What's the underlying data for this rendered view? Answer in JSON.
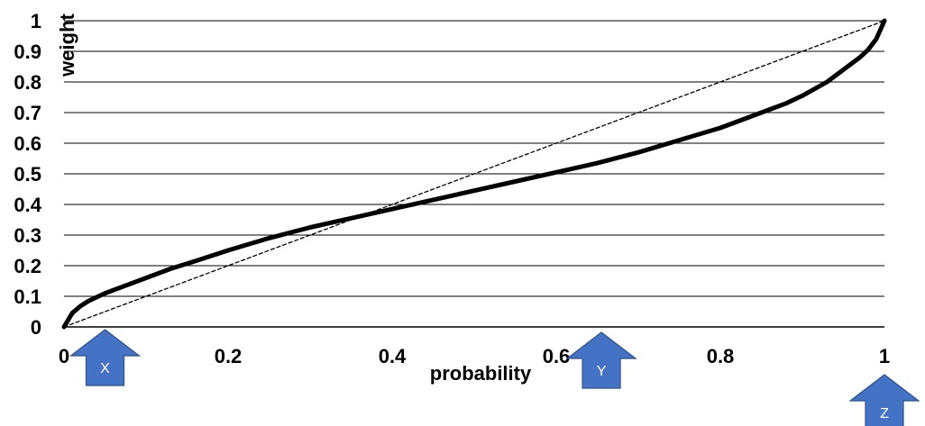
{
  "chart_data": {
    "type": "line",
    "xlabel": "probability",
    "ylabel": "weight",
    "xlim": [
      0,
      1
    ],
    "ylim": [
      0,
      1
    ],
    "x_ticks": [
      0,
      0.2,
      0.4,
      0.6,
      0.8,
      1
    ],
    "x_tick_labels": [
      "0",
      "0.2",
      "0.4",
      "0.6",
      "0.8",
      "1"
    ],
    "y_ticks": [
      0,
      0.1,
      0.2,
      0.3,
      0.4,
      0.5,
      0.6,
      0.7,
      0.8,
      0.9,
      1
    ],
    "y_tick_labels": [
      "0",
      "0.1",
      "0.2",
      "0.3",
      "0.4",
      "0.5",
      "0.6",
      "0.7",
      "0.8",
      "0.9",
      "1"
    ],
    "grid": "horizontal",
    "series": [
      {
        "style": "solid-thick",
        "color": "#000000",
        "x": [
          0,
          0.01,
          0.02,
          0.03,
          0.05,
          0.07,
          0.1,
          0.13,
          0.16,
          0.2,
          0.25,
          0.3,
          0.35,
          0.4,
          0.45,
          0.5,
          0.55,
          0.6,
          0.65,
          0.7,
          0.75,
          0.8,
          0.85,
          0.88,
          0.9,
          0.93,
          0.95,
          0.97,
          0.98,
          0.99,
          1
        ],
        "y": [
          0,
          0.045,
          0.068,
          0.085,
          0.11,
          0.13,
          0.16,
          0.19,
          0.215,
          0.25,
          0.29,
          0.325,
          0.355,
          0.385,
          0.415,
          0.445,
          0.475,
          0.505,
          0.535,
          0.57,
          0.61,
          0.65,
          0.7,
          0.73,
          0.755,
          0.8,
          0.84,
          0.88,
          0.905,
          0.94,
          1
        ]
      },
      {
        "style": "dashed",
        "color": "#000000",
        "x": [
          0,
          1
        ],
        "y": [
          0,
          1
        ]
      }
    ],
    "annotations": [
      {
        "label": "X",
        "x": 0.05,
        "shape": "up-arrow",
        "color": "#4472C4"
      },
      {
        "label": "Y",
        "x": 0.655,
        "shape": "up-arrow",
        "color": "#4472C4"
      },
      {
        "label": "Z",
        "x": 1.0,
        "shape": "up-arrow",
        "color": "#4472C4"
      }
    ]
  }
}
